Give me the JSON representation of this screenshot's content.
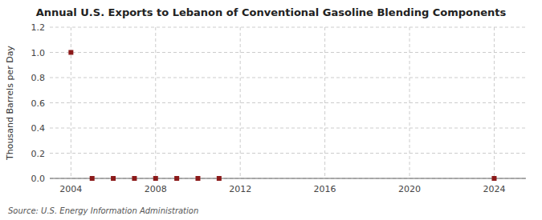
{
  "chart_data": {
    "type": "scatter",
    "title": "Annual U.S. Exports to Lebanon of Conventional Gasoline Blending Components",
    "y_label": "Thousand Barrels per Day",
    "annotations": [
      "Source: U.S. Energy Information Administration"
    ],
    "x": [
      2004,
      2005,
      2006,
      2007,
      2008,
      2009,
      2010,
      2011,
      2024
    ],
    "values": [
      1.0,
      0.0,
      0.0,
      0.0,
      0.0,
      0.0,
      0.0,
      0.0,
      0.0
    ],
    "color": "#8b1a1a",
    "marker": "square",
    "xlim": [
      2003,
      2025.5
    ],
    "xticks": [
      2004,
      2008,
      2012,
      2016,
      2020,
      2024
    ],
    "ylim": [
      0.0,
      1.2
    ],
    "yticks": [
      {
        "value": 0.0,
        "label": "0.0"
      },
      0.2,
      0.4,
      0.6,
      0.8,
      {
        "value": 1.0,
        "label": "1.0"
      },
      1.2
    ],
    "grid": true
  }
}
